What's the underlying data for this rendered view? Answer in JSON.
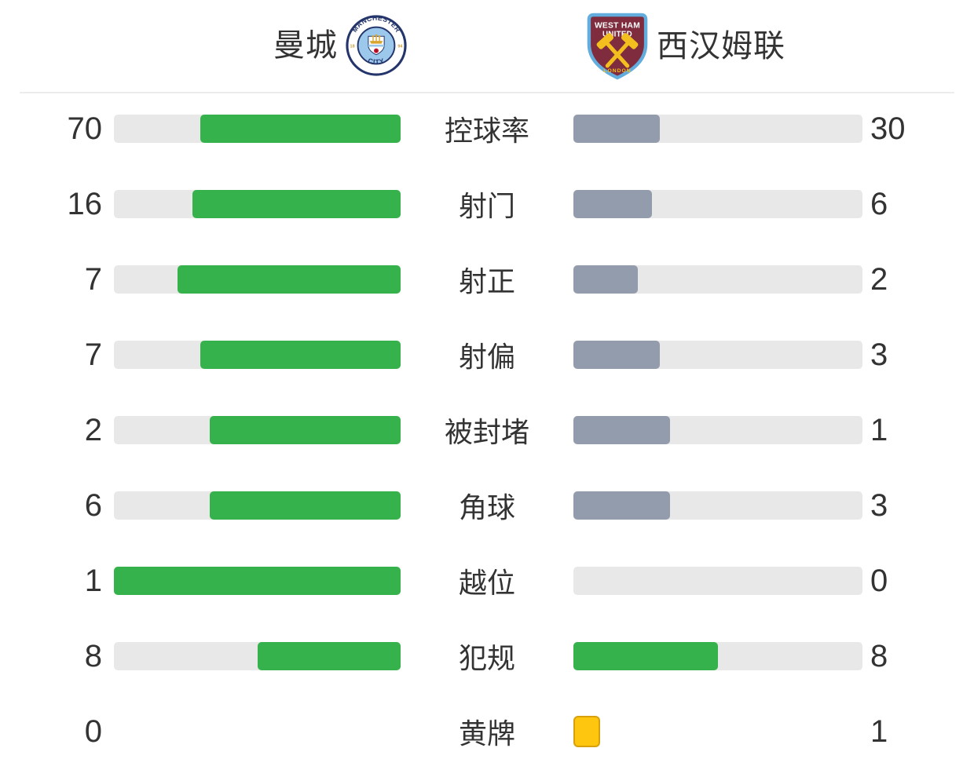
{
  "header": {
    "home": {
      "name": "曼城",
      "crest": {
        "top_text": "MANCHESTER",
        "bottom_text": "CITY",
        "left_text": "18",
        "right_text": "94"
      }
    },
    "away": {
      "name": "西汉姆联",
      "crest": {
        "line1": "WEST HAM",
        "line2": "UNITED",
        "bottom_text": "LONDON"
      }
    }
  },
  "colors": {
    "green": "#35B24B",
    "slate": "#929CAC",
    "track": "#E8E8E8",
    "card_yellow": "#FFC60F",
    "card_border": "#D8A10B",
    "text": "#333333",
    "divider": "#ECECEC"
  },
  "chart_data": {
    "type": "bar",
    "layout": "paired-horizontal-bars, home fills right-aligned, away fills left-aligned, fill length = value/(home+away)",
    "teams": {
      "home": "曼城",
      "away": "西汉姆联"
    },
    "categories": [
      "控球率",
      "射门",
      "射正",
      "射偏",
      "被封堵",
      "角球",
      "越位",
      "犯规",
      "黄牌"
    ],
    "series": [
      {
        "name": "曼城",
        "values": [
          70,
          16,
          7,
          7,
          2,
          6,
          1,
          8,
          0
        ]
      },
      {
        "name": "西汉姆联",
        "values": [
          30,
          6,
          2,
          3,
          1,
          3,
          0,
          8,
          1
        ]
      }
    ],
    "rows": [
      {
        "label": "控球率",
        "home": 70,
        "away": 30,
        "style": "bars",
        "home_fill": "green",
        "away_fill": "slate"
      },
      {
        "label": "射门",
        "home": 16,
        "away": 6,
        "style": "bars",
        "home_fill": "green",
        "away_fill": "slate"
      },
      {
        "label": "射正",
        "home": 7,
        "away": 2,
        "style": "bars",
        "home_fill": "green",
        "away_fill": "slate"
      },
      {
        "label": "射偏",
        "home": 7,
        "away": 3,
        "style": "bars",
        "home_fill": "green",
        "away_fill": "slate"
      },
      {
        "label": "被封堵",
        "home": 2,
        "away": 1,
        "style": "bars",
        "home_fill": "green",
        "away_fill": "slate"
      },
      {
        "label": "角球",
        "home": 6,
        "away": 3,
        "style": "bars",
        "home_fill": "green",
        "away_fill": "slate"
      },
      {
        "label": "越位",
        "home": 1,
        "away": 0,
        "style": "bars",
        "home_fill": "green",
        "away_fill": "slate"
      },
      {
        "label": "犯规",
        "home": 8,
        "away": 8,
        "style": "bars",
        "home_fill": "green",
        "away_fill": "green"
      },
      {
        "label": "黄牌",
        "home": 0,
        "away": 1,
        "style": "cards"
      }
    ]
  }
}
